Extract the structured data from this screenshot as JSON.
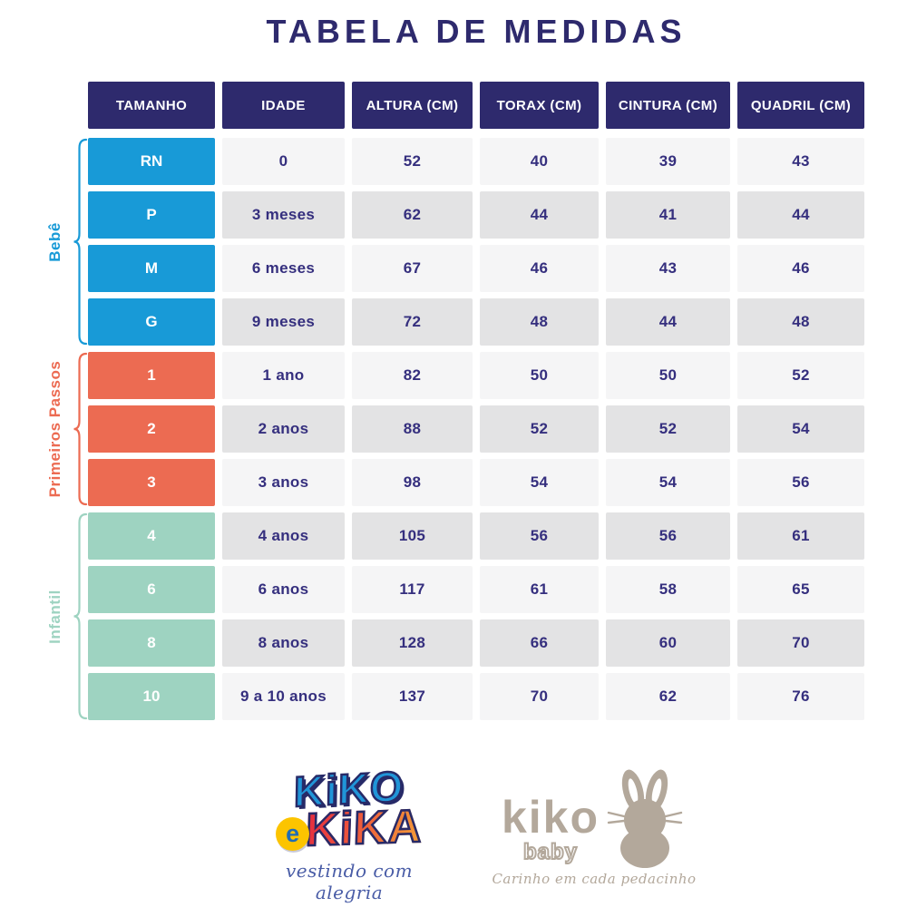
{
  "title": "TABELA DE MEDIDAS",
  "table": {
    "columns": [
      "TAMANHO",
      "IDADE",
      "ALTURA (CM)",
      "TORAX (CM)",
      "CINTURA (CM)",
      "QUADRIL (CM)"
    ],
    "groups": [
      {
        "name": "Bebê",
        "color": "#189ad7",
        "rows": [
          [
            "RN",
            "0",
            "52",
            "40",
            "39",
            "43"
          ],
          [
            "P",
            "3 meses",
            "62",
            "44",
            "41",
            "44"
          ],
          [
            "M",
            "6 meses",
            "67",
            "46",
            "43",
            "46"
          ],
          [
            "G",
            "9 meses",
            "72",
            "48",
            "44",
            "48"
          ]
        ]
      },
      {
        "name": "Primeiros Passos",
        "color": "#ec6b52",
        "rows": [
          [
            "1",
            "1 ano",
            "82",
            "50",
            "50",
            "52"
          ],
          [
            "2",
            "2 anos",
            "88",
            "52",
            "52",
            "54"
          ],
          [
            "3",
            "3 anos",
            "98",
            "54",
            "54",
            "56"
          ]
        ]
      },
      {
        "name": "Infantil",
        "color": "#9ed3c1",
        "rows": [
          [
            "4",
            "4 anos",
            "105",
            "56",
            "56",
            "61"
          ],
          [
            "6",
            "6 anos",
            "117",
            "61",
            "58",
            "65"
          ],
          [
            "8",
            "8 anos",
            "128",
            "66",
            "60",
            "70"
          ],
          [
            "10",
            "9 a 10 anos",
            "137",
            "70",
            "62",
            "76"
          ]
        ]
      }
    ]
  },
  "colors": {
    "header_bg": "#2e2a6d",
    "header_text": "#ffffff",
    "row_light": "#f5f5f6",
    "row_dark": "#e3e3e4",
    "cell_text": "#352f7e",
    "group_bebe": "#189ad7",
    "group_primeiros_passos": "#ec6b52",
    "group_infantil": "#9ed3c1",
    "logo_baby_taupe": "#b3a89b",
    "logo_script_blue": "#4a5da7"
  },
  "footer": {
    "brand_primary": {
      "line1": "KiKO",
      "e": "e",
      "line2": "KiKA",
      "tagline": "vestindo com alegria"
    },
    "brand_baby": {
      "name": "kiko",
      "sub": "baby",
      "tagline": "Carinho em cada pedacinho"
    }
  }
}
